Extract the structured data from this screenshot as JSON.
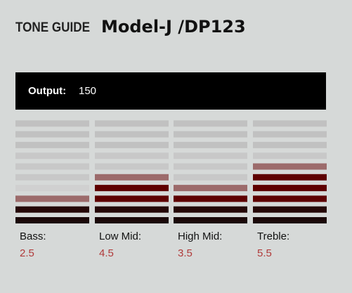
{
  "chart_data": {
    "type": "bar",
    "title": "TONE GUIDE",
    "subtitle": "Model-J /DP123",
    "output": {
      "label": "Output:",
      "value": 150
    },
    "categories": [
      "Bass:",
      "Low Mid:",
      "High Mid:",
      "Treble:"
    ],
    "values": [
      2.5,
      4.5,
      3.5,
      5.5
    ],
    "ylim": [
      0,
      10
    ],
    "color": "#5e0000",
    "partial_color": "#9c6b6b",
    "empty_color": "#c4c4c4",
    "value_color": "#b03a3a"
  }
}
